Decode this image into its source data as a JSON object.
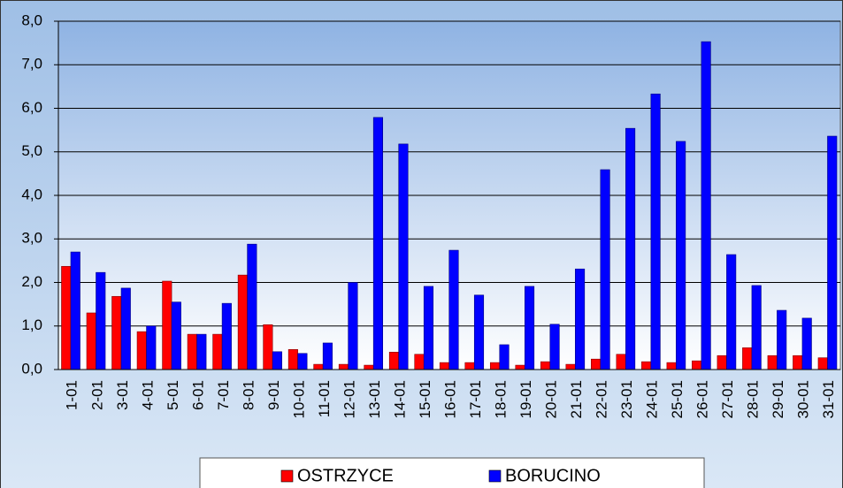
{
  "chart_data": {
    "type": "bar",
    "categories": [
      "1-01",
      "2-01",
      "3-01",
      "4-01",
      "5-01",
      "6-01",
      "7-01",
      "8-01",
      "9-01",
      "10-01",
      "11-01",
      "12-01",
      "13-01",
      "14-01",
      "15-01",
      "16-01",
      "17-01",
      "18-01",
      "19-01",
      "20-01",
      "21-01",
      "22-01",
      "23-01",
      "24-01",
      "25-01",
      "26-01",
      "27-01",
      "28-01",
      "29-01",
      "30-01",
      "31-01"
    ],
    "series": [
      {
        "name": "OSTRZYCE",
        "color": "#ff0000",
        "values": [
          2.37,
          1.3,
          1.68,
          0.87,
          2.03,
          0.81,
          0.81,
          2.17,
          1.03,
          0.46,
          0.12,
          0.12,
          0.1,
          0.4,
          0.35,
          0.16,
          0.16,
          0.16,
          0.1,
          0.18,
          0.12,
          0.24,
          0.35,
          0.18,
          0.16,
          0.2,
          0.32,
          0.5,
          0.32,
          0.32,
          0.27
        ]
      },
      {
        "name": "BORUCINO",
        "color": "#0000ff",
        "values": [
          2.7,
          2.23,
          1.87,
          1.0,
          1.55,
          0.81,
          1.52,
          2.88,
          0.41,
          0.37,
          0.61,
          2.0,
          5.79,
          5.18,
          1.91,
          2.74,
          1.71,
          0.57,
          1.91,
          1.04,
          2.31,
          4.59,
          5.54,
          6.33,
          5.24,
          7.53,
          2.64,
          1.93,
          1.36,
          1.18,
          5.36
        ]
      }
    ],
    "ylim": [
      0,
      8
    ],
    "yticks": [
      {
        "value": 0,
        "label": "0,0"
      },
      {
        "value": 1,
        "label": "1,0"
      },
      {
        "value": 2,
        "label": "2,0"
      },
      {
        "value": 3,
        "label": "3,0"
      },
      {
        "value": 4,
        "label": "4,0"
      },
      {
        "value": 5,
        "label": "5,0"
      },
      {
        "value": 6,
        "label": "6,0"
      },
      {
        "value": 7,
        "label": "7,0"
      },
      {
        "value": 8,
        "label": "8,0"
      }
    ],
    "grid": true
  }
}
